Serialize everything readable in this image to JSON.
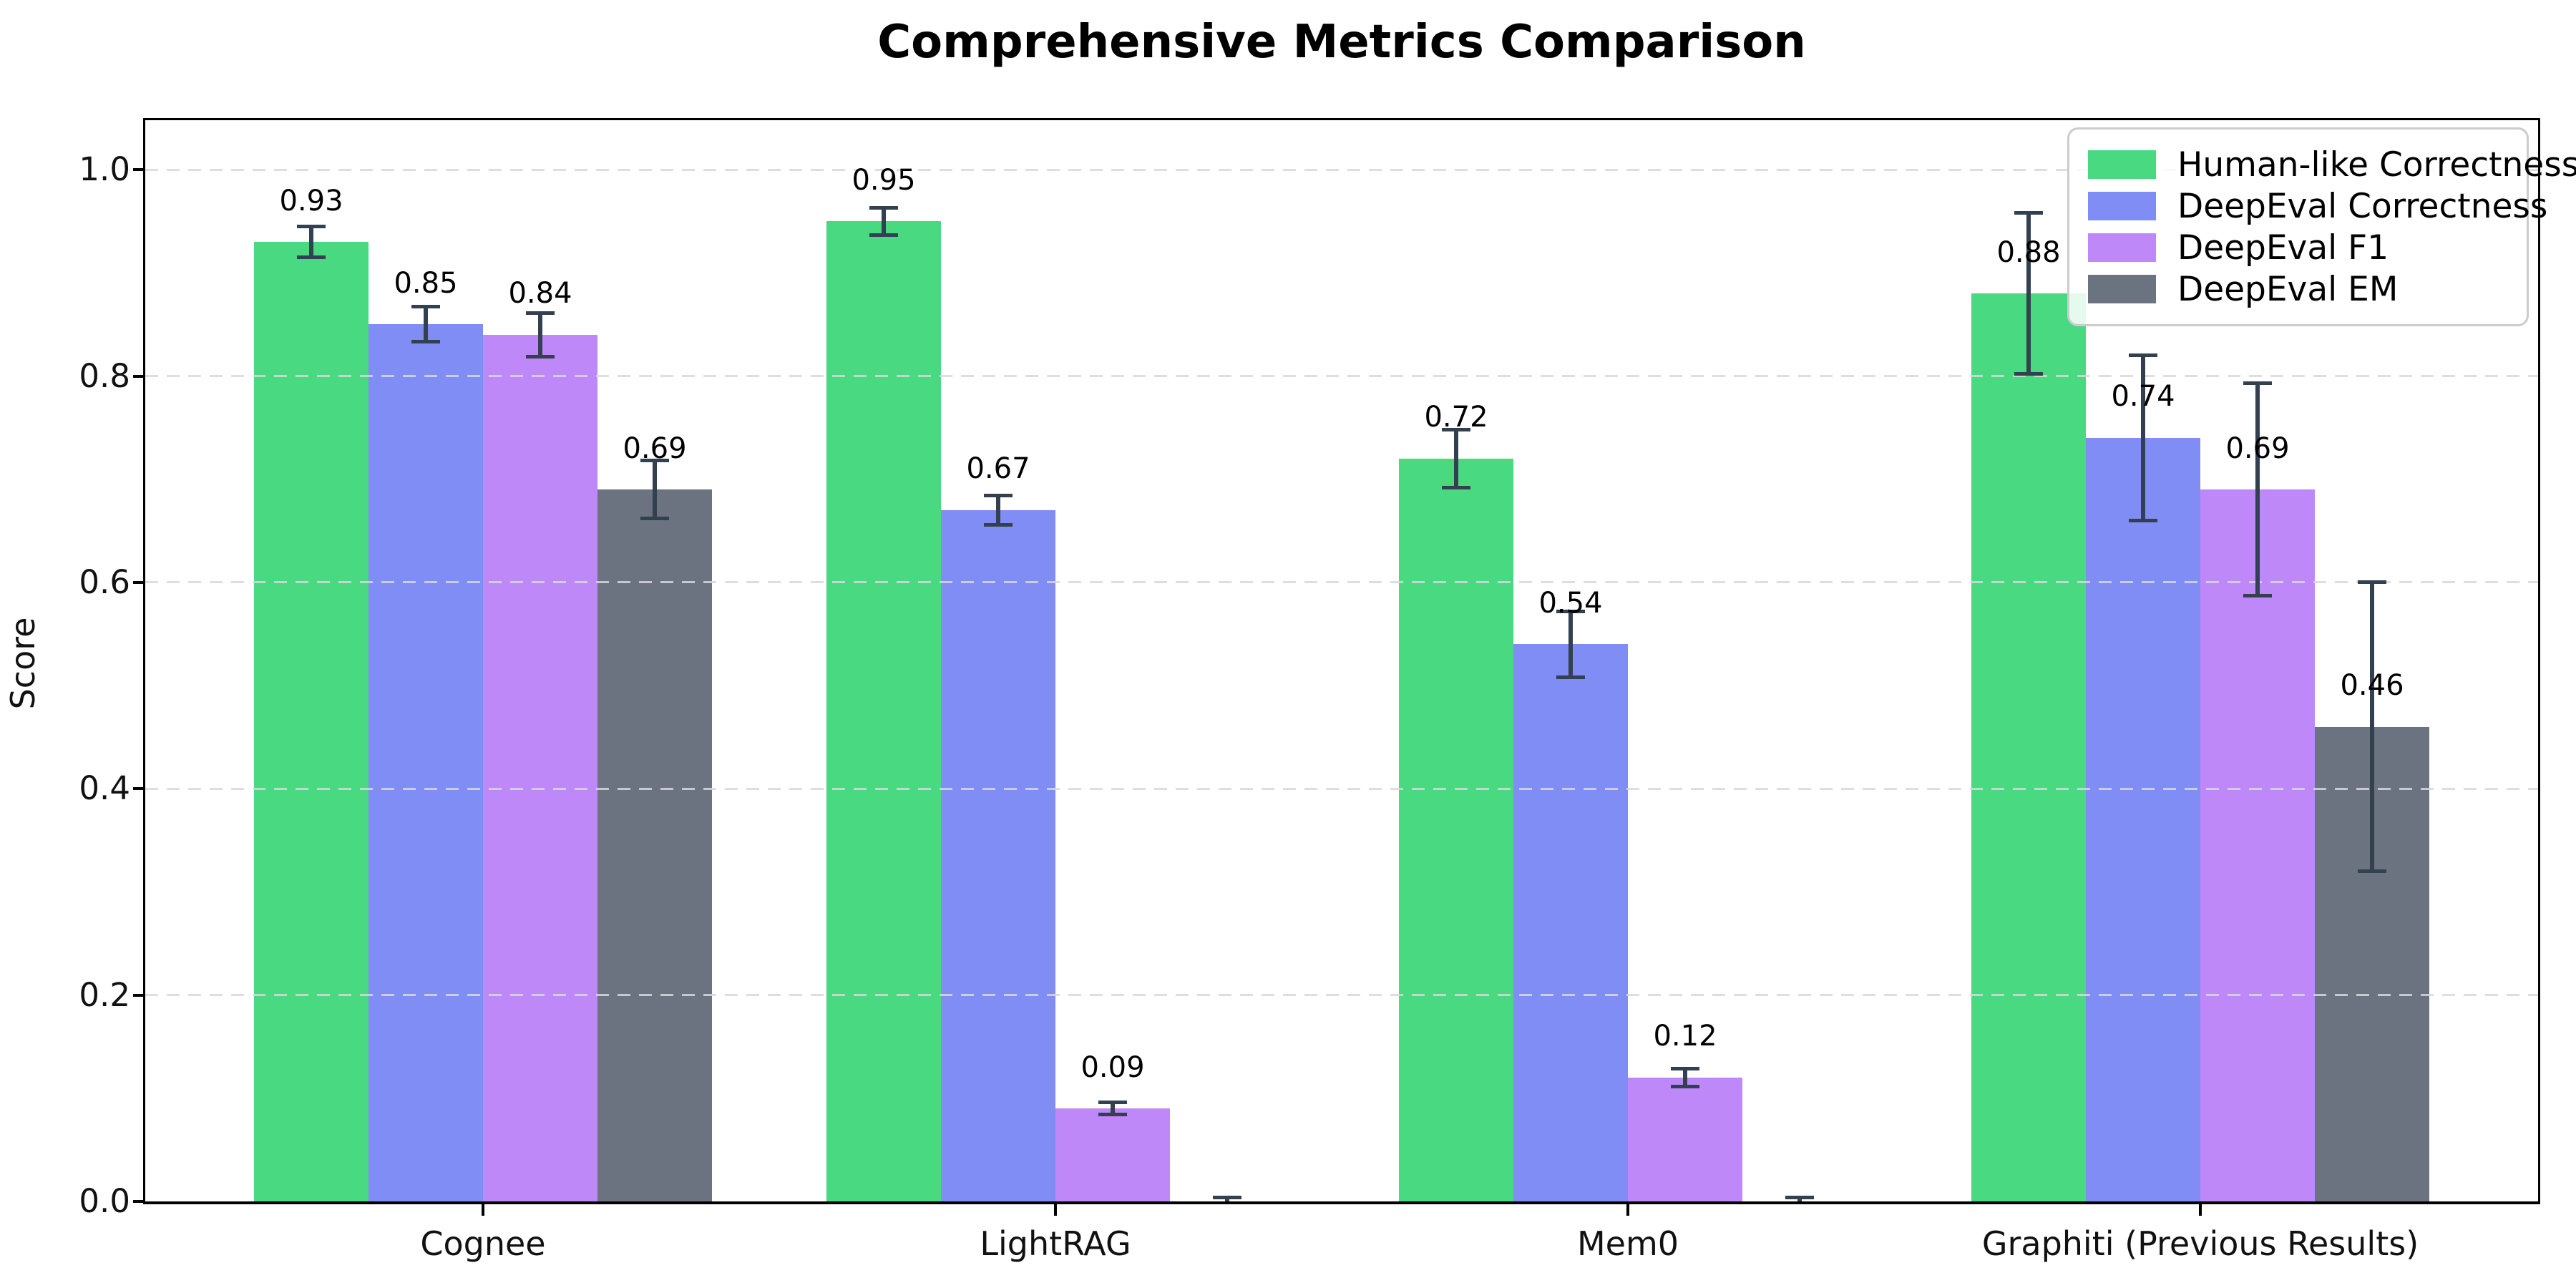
{
  "chart_data": {
    "type": "bar",
    "title": "Comprehensive Metrics Comparison",
    "xlabel": "",
    "ylabel": "Score",
    "categories": [
      "Cognee",
      "LightRAG",
      "Mem0",
      "Graphiti (Previous Results)"
    ],
    "series": [
      {
        "name": "Human-like Correctness",
        "color": "#49d981",
        "values": [
          0.93,
          0.95,
          0.72,
          0.88
        ],
        "errors": [
          0.015,
          0.013,
          0.028,
          0.078
        ],
        "labels": [
          "0.93",
          "0.95",
          "0.72",
          "0.88"
        ]
      },
      {
        "name": "DeepEval Correctness",
        "color": "#7f8df5",
        "values": [
          0.85,
          0.67,
          0.54,
          0.74
        ],
        "errors": [
          0.017,
          0.014,
          0.032,
          0.08
        ],
        "labels": [
          "0.85",
          "0.67",
          "0.54",
          "0.74"
        ]
      },
      {
        "name": "DeepEval F1",
        "color": "#bf88f8",
        "values": [
          0.84,
          0.09,
          0.12,
          0.69
        ],
        "errors": [
          0.021,
          0.006,
          0.009,
          0.103
        ],
        "labels": [
          "0.84",
          "0.09",
          "0.12",
          "0.69"
        ]
      },
      {
        "name": "DeepEval EM",
        "color": "#6b7280",
        "values": [
          0.69,
          0.0,
          0.0,
          0.46
        ],
        "errors": [
          0.028,
          0.004,
          0.004,
          0.14
        ],
        "labels": [
          "0.69",
          "",
          "",
          "0.46"
        ]
      }
    ],
    "yticks": [
      0.0,
      0.2,
      0.4,
      0.6,
      0.8,
      1.0
    ],
    "ytick_labels": [
      "0.0",
      "0.2",
      "0.4",
      "0.6",
      "0.8",
      "1.0"
    ],
    "ylim": [
      0,
      1.048
    ],
    "xlim": [
      -0.59,
      3.59
    ],
    "bar_width": 0.2,
    "grid": "horizontal-dashed",
    "grid_color": "#d8d8dc",
    "legend_position": "upper-right",
    "errorbar_color": "#33404f",
    "axis_color": "#000000",
    "label_offset": 0.024
  }
}
